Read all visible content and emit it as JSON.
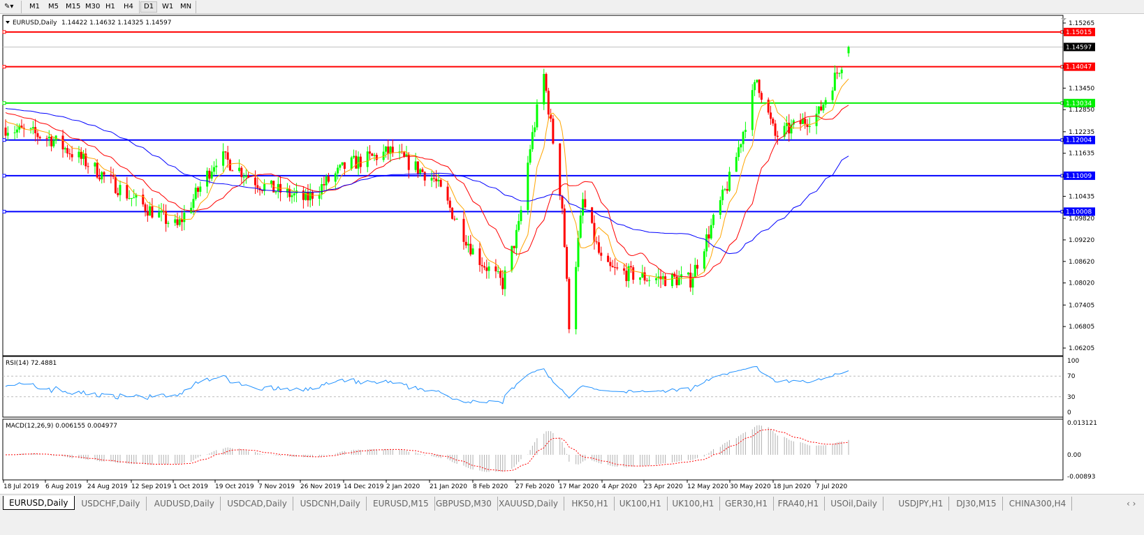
{
  "toolbar": {
    "timeframes": [
      "M1",
      "M5",
      "M15",
      "M30",
      "H1",
      "H4",
      "D1",
      "W1",
      "MN"
    ],
    "active_timeframe": "D1"
  },
  "chart_header": {
    "symbol_label": "EURUSD,Daily",
    "ohlc": "1.14422 1.14632 1.14325 1.14597"
  },
  "price_axis": {
    "ticks": [
      "1.15265",
      "1.13450",
      "1.12850",
      "1.12235",
      "1.11635",
      "1.10435",
      "1.09820",
      "1.09220",
      "1.08620",
      "1.08020",
      "1.07405",
      "1.06805",
      "1.06205"
    ],
    "current_price": "1.14597"
  },
  "horizontal_lines": [
    {
      "price": "1.15015",
      "color": "#ff0000"
    },
    {
      "price": "1.14047",
      "color": "#ff0000"
    },
    {
      "price": "1.13034",
      "color": "#00ee00"
    },
    {
      "price": "1.12004",
      "color": "#0000ff"
    },
    {
      "price": "1.11009",
      "color": "#0000ff"
    },
    {
      "price": "1.10008",
      "color": "#0000ff"
    }
  ],
  "rsi": {
    "label": "RSI(14) 72.4881",
    "ticks": [
      "100",
      "70",
      "30",
      "0"
    ],
    "color": "#1e90ff"
  },
  "macd": {
    "label": "MACD(12,26,9) 0.006155 0.004977",
    "ticks": [
      "0.013121",
      "0.00",
      "-0.00893"
    ],
    "signal_color": "#ff0000",
    "histogram_color": "#b0b0b0"
  },
  "colors": {
    "bull": "#00ff00",
    "bear": "#ff0000",
    "ma_fast": "#ffa500",
    "ma_mid": "#ff0000",
    "ma_slow": "#0000ff"
  },
  "chart_data": {
    "type": "candlestick",
    "x_tick_labels": [
      "18 Jul 2019",
      "6 Aug 2019",
      "24 Aug 2019",
      "12 Sep 2019",
      "1 Oct 2019",
      "19 Oct 2019",
      "7 Nov 2019",
      "26 Nov 2019",
      "14 Dec 2019",
      "2 Jan 2020",
      "21 Jan 2020",
      "8 Feb 2020",
      "27 Feb 2020",
      "17 Mar 2020",
      "4 Apr 2020",
      "23 Apr 2020",
      "12 May 2020",
      "30 May 2020",
      "18 Jun 2020",
      "7 Jul 2020"
    ],
    "ylim": [
      1.06205,
      1.15265
    ],
    "approx_close": [
      [
        "2019-07-18",
        1.1235
      ],
      [
        "2019-08-06",
        1.1207
      ],
      [
        "2019-08-24",
        1.113
      ],
      [
        "2019-09-12",
        1.1034
      ],
      [
        "2019-10-01",
        1.0958
      ],
      [
        "2019-10-19",
        1.1159
      ],
      [
        "2019-11-07",
        1.1073
      ],
      [
        "2019-11-26",
        1.1034
      ],
      [
        "2019-12-14",
        1.113
      ],
      [
        "2020-01-02",
        1.1168
      ],
      [
        "2020-01-21",
        1.1092
      ],
      [
        "2020-02-08",
        1.088
      ],
      [
        "2020-02-20",
        1.08
      ],
      [
        "2020-02-27",
        1.0958
      ],
      [
        "2020-03-03",
        1.118
      ],
      [
        "2020-03-09",
        1.138
      ],
      [
        "2020-03-17",
        1.1015
      ],
      [
        "2020-03-20",
        1.069
      ],
      [
        "2020-03-26",
        1.103
      ],
      [
        "2020-04-04",
        1.0843
      ],
      [
        "2020-04-23",
        1.0816
      ],
      [
        "2020-05-12",
        1.081
      ],
      [
        "2020-05-30",
        1.1106
      ],
      [
        "2020-06-10",
        1.137
      ],
      [
        "2020-06-18",
        1.121
      ],
      [
        "2020-07-07",
        1.1275
      ],
      [
        "2020-07-20",
        1.14597
      ]
    ]
  },
  "symbol_tabs": [
    "EURUSD,Daily",
    "USDCHF,Daily",
    "AUDUSD,Daily",
    "USDCAD,Daily",
    "USDCNH,Daily",
    "EURUSD,M15",
    "GBPUSD,M30",
    "XAUUSD,Daily",
    "HK50,H1",
    "UK100,H1",
    "UK100,H1",
    "GER30,H1",
    "FRA40,H1",
    "USOil,Daily",
    "USDJPY,H1",
    "DJ30,M15",
    "CHINA300,H4"
  ],
  "active_tab": "EURUSD,Daily"
}
